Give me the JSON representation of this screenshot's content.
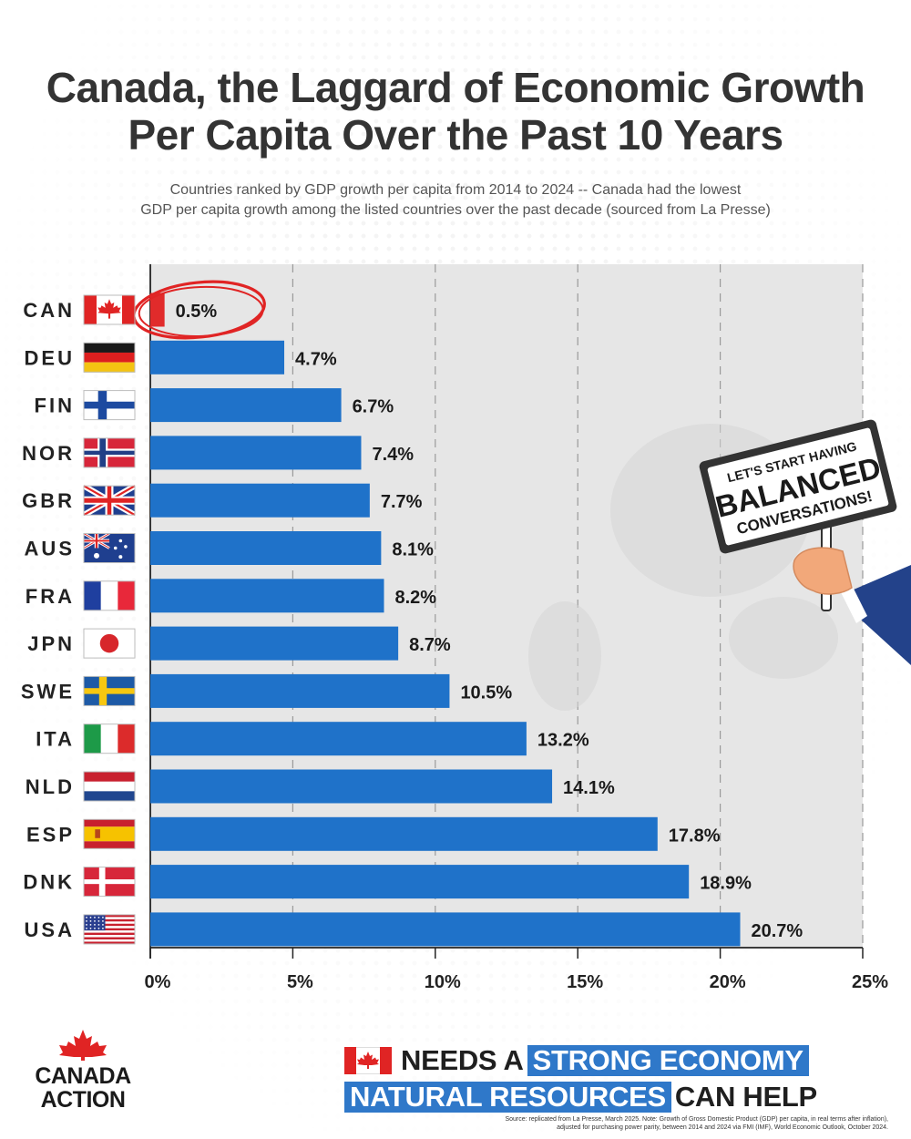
{
  "title_line1": "Canada, the Laggard of Economic Growth",
  "title_line2": "Per Capita Over the Past 10 Years",
  "subtitle_line1": "Countries ranked by GDP growth per capita from 2014 to 2024 -- Canada had the lowest",
  "subtitle_line2": "GDP per capita growth among the listed countries over the past decade (sourced from La Presse)",
  "colors": {
    "bar": "#1f72c9",
    "highlight_bar": "#e12b2b",
    "plot_bg": "#e6e6e6",
    "banner_blue": "#2f78c9"
  },
  "chart_data": {
    "type": "bar",
    "orientation": "horizontal",
    "categories": [
      "CAN",
      "DEU",
      "FIN",
      "NOR",
      "GBR",
      "AUS",
      "FRA",
      "JPN",
      "SWE",
      "ITA",
      "NLD",
      "ESP",
      "DNK",
      "USA"
    ],
    "values": [
      0.5,
      4.7,
      6.7,
      7.4,
      7.7,
      8.1,
      8.2,
      8.7,
      10.5,
      13.2,
      14.1,
      17.8,
      18.9,
      20.7
    ],
    "value_labels": [
      "0.5%",
      "4.7%",
      "6.7%",
      "7.4%",
      "7.7%",
      "8.1%",
      "8.2%",
      "8.7%",
      "10.5%",
      "13.2%",
      "14.1%",
      "17.8%",
      "18.9%",
      "20.7%"
    ],
    "xlim": [
      0,
      25
    ],
    "ticks": [
      0,
      5,
      10,
      15,
      20,
      25
    ],
    "tick_labels": [
      "0%",
      "5%",
      "10%",
      "15%",
      "20%",
      "25%"
    ],
    "highlight": "CAN",
    "grid": true
  },
  "sign_lines": [
    "LET'S START HAVING",
    "BALANCED",
    "CONVERSATIONS!"
  ],
  "logo": {
    "line1": "CANADA",
    "line2": "ACTION"
  },
  "banner": {
    "row1_dark": "NEEDS A",
    "row1_blue": "STRONG ECONOMY",
    "row2_blue": "NATURAL RESOURCES",
    "row2_dark": "CAN HELP"
  },
  "source_line1": "Source: replicated from La Presse, March 2025. Note: Growth of Gross Domestic Product (GDP) per capita, in real terms  after inflation),",
  "source_line2": "adjusted for purchasing power parity, between 2014 and 2024 via FMI (IMF), World Economic Outlook, October 2024."
}
